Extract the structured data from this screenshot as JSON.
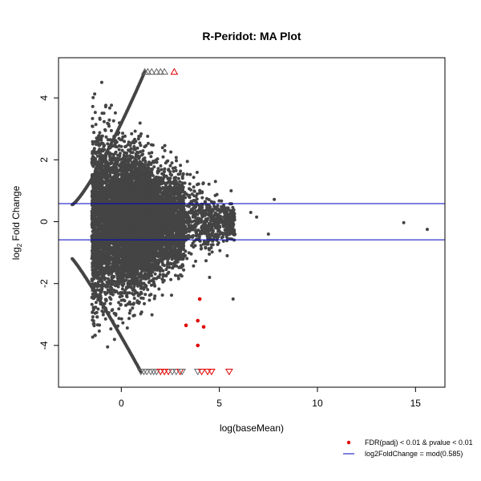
{
  "chart_data": {
    "type": "scatter",
    "title": "R-Peridot: MA Plot",
    "xlabel": "log(baseMean)",
    "ylabel_main": "log",
    "ylabel_sub": "2",
    "ylabel_rest": " Fold Change",
    "xlim": [
      -3.2,
      16.5
    ],
    "ylim": [
      -5.35,
      5.3
    ],
    "x_ticks": [
      0,
      5,
      10,
      15
    ],
    "x_tick_labels": [
      "0",
      "5",
      "10",
      "15"
    ],
    "y_ticks": [
      -4,
      -2,
      0,
      2,
      4
    ],
    "y_tick_labels": [
      "-4",
      "-2",
      "0",
      "2",
      "4"
    ],
    "threshold_lines": [
      0.585,
      -0.585
    ],
    "clip_y": 4.85,
    "point_cloud": {
      "x_range": [
        -1.5,
        5.8
      ],
      "y_spread_at_low_mean": 3.4,
      "approx_count": 9000,
      "color": "#444444"
    },
    "upper_edge_points": {
      "x_range": [
        -2.5,
        1.2
      ],
      "color": "#444444"
    },
    "lower_edge_points": {
      "x_range": [
        -2.5,
        1.0
      ],
      "color": "#444444"
    },
    "outliers": [
      {
        "x": 14.4,
        "y": -0.03
      },
      {
        "x": 15.6,
        "y": -0.25
      },
      {
        "x": 7.8,
        "y": 0.72
      },
      {
        "x": 7.5,
        "y": -0.4
      },
      {
        "x": 6.9,
        "y": 0.15
      },
      {
        "x": 6.6,
        "y": 0.3
      },
      {
        "x": 5.7,
        "y": -2.5
      },
      {
        "x": 5.6,
        "y": 1.0
      },
      {
        "x": 5.4,
        "y": -1.1
      },
      {
        "x": 4.8,
        "y": 1.3
      },
      {
        "x": 4.5,
        "y": -1.8
      }
    ],
    "significant_points": [
      {
        "x": 3.3,
        "y": -3.35
      },
      {
        "x": 3.9,
        "y": -3.2
      },
      {
        "x": 4.2,
        "y": -3.4
      },
      {
        "x": 4.0,
        "y": -2.5
      },
      {
        "x": 3.9,
        "y": -4.0
      }
    ],
    "upper_triangles": [
      {
        "x": 1.2,
        "sig": false
      },
      {
        "x": 1.35,
        "sig": false
      },
      {
        "x": 1.55,
        "sig": false
      },
      {
        "x": 1.8,
        "sig": false
      },
      {
        "x": 2.0,
        "sig": false
      },
      {
        "x": 2.2,
        "sig": false
      },
      {
        "x": 2.7,
        "sig": true
      }
    ],
    "lower_triangles": [
      {
        "x": 1.0,
        "sig": false
      },
      {
        "x": 1.15,
        "sig": false
      },
      {
        "x": 1.3,
        "sig": false
      },
      {
        "x": 1.5,
        "sig": false
      },
      {
        "x": 1.65,
        "sig": false
      },
      {
        "x": 1.8,
        "sig": false
      },
      {
        "x": 2.0,
        "sig": true
      },
      {
        "x": 2.2,
        "sig": true
      },
      {
        "x": 2.4,
        "sig": true
      },
      {
        "x": 2.6,
        "sig": false
      },
      {
        "x": 2.8,
        "sig": false
      },
      {
        "x": 3.0,
        "sig": true
      },
      {
        "x": 3.1,
        "sig": false
      },
      {
        "x": 3.9,
        "sig": false
      },
      {
        "x": 4.1,
        "sig": true
      },
      {
        "x": 4.4,
        "sig": true
      },
      {
        "x": 4.6,
        "sig": true
      },
      {
        "x": 5.5,
        "sig": true
      }
    ],
    "legend": {
      "placement": "bottom-right",
      "entries": [
        {
          "label": "FDR(padj) < 0.01 & pvalue < 0.01",
          "symbol": "dot",
          "color": "#e00000"
        },
        {
          "label": "log2FoldChange = mod(0.585)",
          "symbol": "line",
          "color": "#0000c0"
        }
      ]
    },
    "colors": {
      "points": "#444444",
      "significant": "#e00000",
      "threshold_line": "#0000c0",
      "triangle_normal": "#666666",
      "triangle_sig": "#e00000"
    }
  }
}
